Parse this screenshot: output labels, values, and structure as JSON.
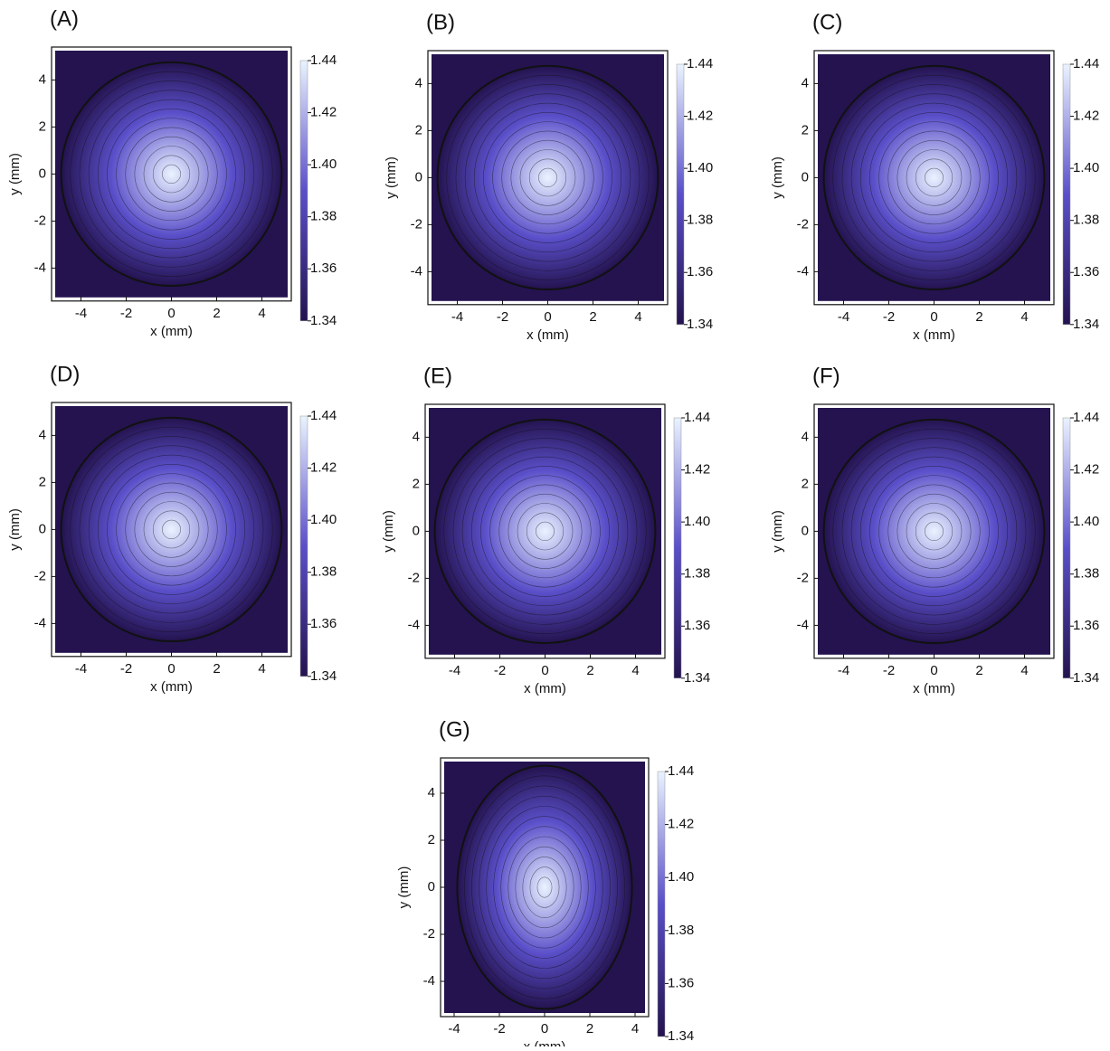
{
  "chart_data": [
    {
      "type": "contour",
      "label": "(A)",
      "xlabel": "x (mm)",
      "ylabel": "y (mm)",
      "xlim": [
        -5.3,
        5.3
      ],
      "ylim": [
        -5.4,
        5.4
      ],
      "xticks": [
        -4,
        -2,
        0,
        2,
        4
      ],
      "yticks": [
        -4,
        -2,
        0,
        2,
        4
      ],
      "clim": [
        1.34,
        1.44
      ],
      "cticks": [
        1.34,
        1.36,
        1.38,
        {
          "value": 1.4,
          "label": "1.40"
        },
        1.42,
        1.44
      ],
      "colormap": [
        "#24134f",
        "#5a4fc9",
        "#eaf3ff"
      ]
    },
    {
      "type": "contour",
      "label": "(B)",
      "xlabel": "x (mm)",
      "ylabel": "y (mm)",
      "xlim": [
        -5.3,
        5.3
      ],
      "ylim": [
        -5.4,
        5.4
      ],
      "xticks": [
        -4,
        -2,
        0,
        2,
        4
      ],
      "yticks": [
        -4,
        -2,
        0,
        2,
        4
      ],
      "clim": [
        1.34,
        1.44
      ],
      "cticks": [
        1.34,
        1.36,
        1.38,
        {
          "value": 1.4,
          "label": "1.40"
        },
        1.42,
        1.44
      ],
      "colormap": [
        "#24134f",
        "#5a4fc9",
        "#eaf3ff"
      ]
    },
    {
      "type": "contour",
      "label": "(C)",
      "xlabel": "x (mm)",
      "ylabel": "y (mm)",
      "xlim": [
        -5.3,
        5.3
      ],
      "ylim": [
        -5.4,
        5.4
      ],
      "xticks": [
        -4,
        -2,
        0,
        2,
        4
      ],
      "yticks": [
        -4,
        -2,
        0,
        2,
        4
      ],
      "clim": [
        1.34,
        1.44
      ],
      "cticks": [
        1.34,
        1.36,
        1.38,
        {
          "value": 1.4,
          "label": "1.40"
        },
        1.42,
        1.44
      ],
      "colormap": [
        "#24134f",
        "#5a4fc9",
        "#eaf3ff"
      ]
    },
    {
      "type": "contour",
      "label": "(D)",
      "xlabel": "x (mm)",
      "ylabel": "y (mm)",
      "xlim": [
        -5.3,
        5.3
      ],
      "ylim": [
        -5.4,
        5.4
      ],
      "xticks": [
        -4,
        -2,
        0,
        2,
        4
      ],
      "yticks": [
        -4,
        -2,
        0,
        2,
        4
      ],
      "clim": [
        1.34,
        1.44
      ],
      "cticks": [
        1.34,
        1.36,
        1.38,
        {
          "value": 1.4,
          "label": "1.40"
        },
        1.42,
        1.44
      ],
      "colormap": [
        "#24134f",
        "#5a4fc9",
        "#eaf3ff"
      ]
    },
    {
      "type": "contour",
      "label": "(E)",
      "xlabel": "x (mm)",
      "ylabel": "y (mm)",
      "xlim": [
        -5.3,
        5.3
      ],
      "ylim": [
        -5.4,
        5.4
      ],
      "xticks": [
        -4,
        -2,
        0,
        2,
        4
      ],
      "yticks": [
        -4,
        -2,
        0,
        2,
        4
      ],
      "clim": [
        1.34,
        1.44
      ],
      "cticks": [
        1.34,
        1.36,
        1.38,
        {
          "value": 1.4,
          "label": "1.40"
        },
        1.42,
        1.44
      ],
      "colormap": [
        "#24134f",
        "#5a4fc9",
        "#eaf3ff"
      ]
    },
    {
      "type": "contour",
      "label": "(F)",
      "xlabel": "x (mm)",
      "ylabel": "y (mm)",
      "xlim": [
        -5.3,
        5.3
      ],
      "ylim": [
        -5.4,
        5.4
      ],
      "xticks": [
        -4,
        -2,
        0,
        2,
        4
      ],
      "yticks": [
        -4,
        -2,
        0,
        2,
        4
      ],
      "clim": [
        1.34,
        1.44
      ],
      "cticks": [
        1.34,
        1.36,
        1.38,
        {
          "value": 1.4,
          "label": "1.40"
        },
        1.42,
        1.44
      ],
      "colormap": [
        "#24134f",
        "#5a4fc9",
        "#eaf3ff"
      ]
    },
    {
      "type": "contour",
      "label": "(G)",
      "xlabel": "x (mm)",
      "ylabel": "y (mm)",
      "xlim": [
        -4.6,
        4.6
      ],
      "ylim": [
        -5.5,
        5.5
      ],
      "xticks": [
        -4,
        -2,
        0,
        2,
        4
      ],
      "yticks": [
        -4,
        -2,
        0,
        2,
        4
      ],
      "clim": [
        1.34,
        1.44
      ],
      "cticks": [
        1.34,
        1.36,
        1.38,
        {
          "value": 1.4,
          "label": "1.40"
        },
        1.42,
        1.44
      ],
      "colormap": [
        "#24134f",
        "#5a4fc9",
        "#eaf3ff"
      ]
    }
  ]
}
